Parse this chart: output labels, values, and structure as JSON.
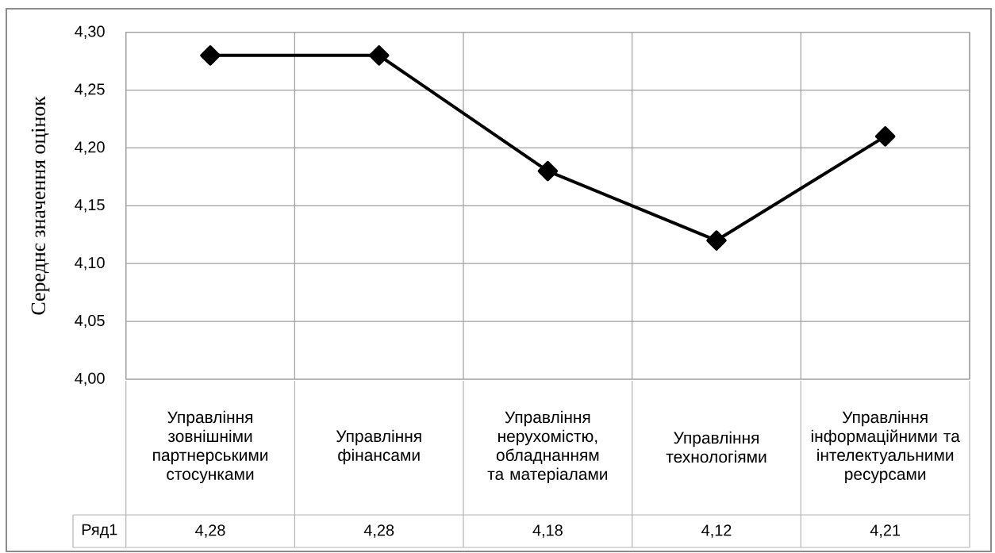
{
  "chart_data": {
    "type": "line",
    "ylabel": "Середнє значення оцінок",
    "categories": [
      "Управління зовнішніми партнерськими стосунками",
      "Управління фінансами",
      "Управління нерухомістю, обладнанням та матеріалами",
      "Управління технологіями",
      "Управління інформаційними та інтелектуальними ресурсами"
    ],
    "series": [
      {
        "name": "Ряд1",
        "color": "#000000",
        "values": [
          4.28,
          4.28,
          4.18,
          4.12,
          4.21
        ],
        "value_labels": [
          "4,28",
          "4,28",
          "4,18",
          "4,12",
          "4,21"
        ]
      }
    ],
    "ylim": [
      4.0,
      4.3
    ],
    "yticks": [
      {
        "value": 4.0,
        "label": "4,00"
      },
      {
        "value": 4.05,
        "label": "4,05"
      },
      {
        "value": 4.1,
        "label": "4,10"
      },
      {
        "value": 4.15,
        "label": "4,15"
      },
      {
        "value": 4.2,
        "label": "4,20"
      },
      {
        "value": 4.25,
        "label": "4,25"
      },
      {
        "value": 4.3,
        "label": "4,30"
      }
    ],
    "grid": true,
    "marker": "diamond",
    "line_style": "solid"
  }
}
